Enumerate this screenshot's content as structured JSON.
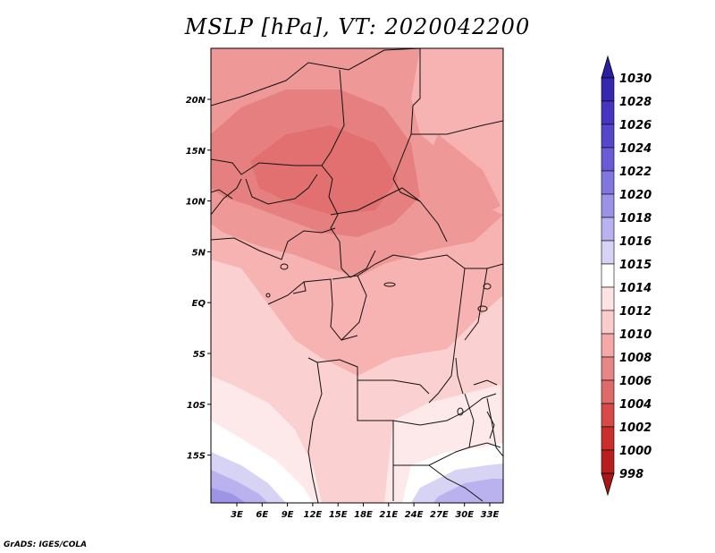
{
  "title": "MSLP [hPa], VT: 2020042200",
  "credit": "GrADS: IGES/COLA",
  "map": {
    "lon_ticks": [
      "3E",
      "6E",
      "9E",
      "12E",
      "15E",
      "18E",
      "21E",
      "24E",
      "27E",
      "30E",
      "33E"
    ],
    "lat_ticks": [
      "20N",
      "15N",
      "10N",
      "5N",
      "EQ",
      "5S",
      "10S",
      "15S"
    ]
  },
  "colorbar": {
    "levels": [
      "1030",
      "1028",
      "1026",
      "1024",
      "1022",
      "1020",
      "1018",
      "1016",
      "1015",
      "1014",
      "1012",
      "1010",
      "1008",
      "1006",
      "1004",
      "1002",
      "1000",
      "998"
    ],
    "colors": [
      "#2a1fa0",
      "#3527b0",
      "#4535c0",
      "#5546cc",
      "#6a5bd6",
      "#8276e0",
      "#9c93e8",
      "#b8b2ef",
      "#d6d3f6",
      "#ffffff",
      "#fde3e3",
      "#fbcccc",
      "#f5a8a8",
      "#e68686",
      "#de6a6a",
      "#d84a4a",
      "#cc2d2d",
      "#bb1e1e",
      "#a81818"
    ]
  },
  "field_colors": {
    "p1014": "#fde9e9",
    "p1012": "#fbd0d0",
    "p1010": "#f7b2b2",
    "p1008": "#ee9898",
    "p1006": "#e68080",
    "p1005": "#e27070",
    "white": "#ffffff",
    "blue_light": "#d7d3f5",
    "blue_mid": "#b9b2ee",
    "blue_dark": "#9d94e6"
  }
}
